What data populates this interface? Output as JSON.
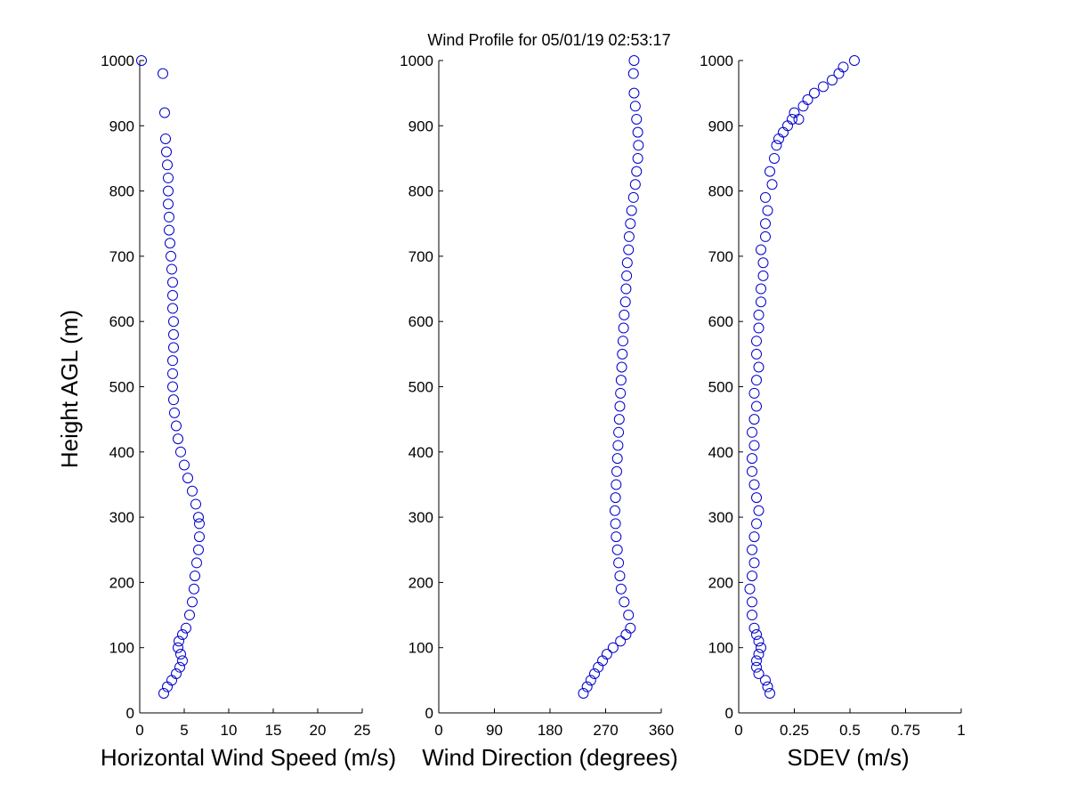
{
  "figure_title": "Wind Profile for  05/01/19 02:53:17",
  "colors": {
    "marker": "#0000cc",
    "axes": "#000000",
    "background": "#ffffff"
  },
  "chart_data": [
    {
      "type": "scatter",
      "xlabel": "Horizontal Wind Speed (m/s)",
      "ylabel": "Height AGL (m)",
      "xlim": [
        0,
        25
      ],
      "ylim": [
        0,
        1000
      ],
      "xticks": [
        "0",
        "5",
        "10",
        "15",
        "20",
        "25"
      ],
      "yticks": [
        "0",
        "100",
        "200",
        "300",
        "400",
        "500",
        "600",
        "700",
        "800",
        "900",
        "1000"
      ],
      "series": [
        {
          "x": [
            2.7,
            3.1,
            3.6,
            4.1,
            4.5,
            4.8,
            4.6,
            4.3,
            4.4,
            4.8,
            5.2,
            5.6,
            5.9,
            6.1,
            6.2,
            6.4,
            6.6,
            6.7,
            6.7,
            6.6,
            6.3,
            5.9,
            5.4,
            5.0,
            4.6,
            4.3,
            4.1,
            3.9,
            3.8,
            3.7,
            3.7,
            3.7,
            3.8,
            3.8,
            3.8,
            3.7,
            3.7,
            3.7,
            3.6,
            3.5,
            3.4,
            3.3,
            3.3,
            3.2,
            3.2,
            3.2,
            3.1,
            3.0,
            2.9,
            2.8,
            2.6,
            0.2
          ],
          "y": [
            30,
            40,
            50,
            60,
            70,
            80,
            90,
            100,
            110,
            120,
            130,
            150,
            170,
            190,
            210,
            230,
            250,
            270,
            290,
            300,
            320,
            340,
            360,
            380,
            400,
            420,
            440,
            460,
            480,
            500,
            520,
            540,
            560,
            580,
            600,
            620,
            640,
            660,
            680,
            700,
            720,
            740,
            760,
            780,
            800,
            820,
            840,
            860,
            880,
            920,
            980,
            1000
          ]
        }
      ]
    },
    {
      "type": "scatter",
      "xlabel": "Wind Direction (degrees)",
      "ylabel": "",
      "xlim": [
        0,
        360
      ],
      "ylim": [
        0,
        1000
      ],
      "xticks": [
        "0",
        "90",
        "180",
        "270",
        "360"
      ],
      "yticks": [
        "0",
        "100",
        "200",
        "300",
        "400",
        "500",
        "600",
        "700",
        "800",
        "900",
        "1000"
      ],
      "series": [
        {
          "x": [
            234,
            240,
            246,
            252,
            258,
            265,
            272,
            282,
            294,
            303,
            310,
            307,
            300,
            295,
            293,
            291,
            289,
            287,
            286,
            285,
            286,
            287,
            288,
            289,
            290,
            291,
            292,
            293,
            294,
            295,
            296,
            297,
            298,
            299,
            300,
            302,
            303,
            304,
            305,
            307,
            308,
            310,
            312,
            315,
            318,
            320,
            322,
            323,
            322,
            320,
            318,
            316,
            315,
            316
          ],
          "y": [
            30,
            40,
            50,
            60,
            70,
            80,
            90,
            100,
            110,
            120,
            130,
            150,
            170,
            190,
            210,
            230,
            250,
            270,
            290,
            310,
            330,
            350,
            370,
            390,
            410,
            430,
            450,
            470,
            490,
            510,
            530,
            550,
            570,
            590,
            610,
            630,
            650,
            670,
            690,
            710,
            730,
            750,
            770,
            790,
            810,
            830,
            850,
            870,
            890,
            910,
            930,
            950,
            980,
            1000
          ]
        }
      ]
    },
    {
      "type": "scatter",
      "xlabel": "SDEV  (m/s)",
      "ylabel": "",
      "xlim": [
        0,
        1
      ],
      "ylim": [
        0,
        1000
      ],
      "xticks": [
        "0",
        "0.25",
        "0.5",
        "0.75",
        "1"
      ],
      "yticks": [
        "0",
        "100",
        "200",
        "300",
        "400",
        "500",
        "600",
        "700",
        "800",
        "900",
        "1000"
      ],
      "series": [
        {
          "x": [
            0.14,
            0.13,
            0.12,
            0.09,
            0.08,
            0.08,
            0.09,
            0.1,
            0.09,
            0.08,
            0.07,
            0.06,
            0.06,
            0.05,
            0.06,
            0.07,
            0.06,
            0.07,
            0.08,
            0.09,
            0.08,
            0.07,
            0.06,
            0.06,
            0.07,
            0.06,
            0.07,
            0.08,
            0.07,
            0.08,
            0.09,
            0.08,
            0.08,
            0.09,
            0.09,
            0.1,
            0.1,
            0.11,
            0.11,
            0.1,
            0.12,
            0.12,
            0.13,
            0.12,
            0.15,
            0.14,
            0.16,
            0.17,
            0.18,
            0.2,
            0.22,
            0.24,
            0.27,
            0.25,
            0.29,
            0.31,
            0.34,
            0.38,
            0.42,
            0.45,
            0.47,
            0.52
          ],
          "y": [
            30,
            40,
            50,
            60,
            70,
            80,
            90,
            100,
            110,
            120,
            130,
            150,
            170,
            190,
            210,
            230,
            250,
            270,
            290,
            310,
            330,
            350,
            370,
            390,
            410,
            430,
            450,
            470,
            490,
            510,
            530,
            550,
            570,
            590,
            610,
            630,
            650,
            670,
            690,
            710,
            730,
            750,
            770,
            790,
            810,
            830,
            850,
            870,
            880,
            890,
            900,
            910,
            910,
            920,
            930,
            940,
            950,
            960,
            970,
            980,
            990,
            1000
          ]
        }
      ]
    }
  ]
}
